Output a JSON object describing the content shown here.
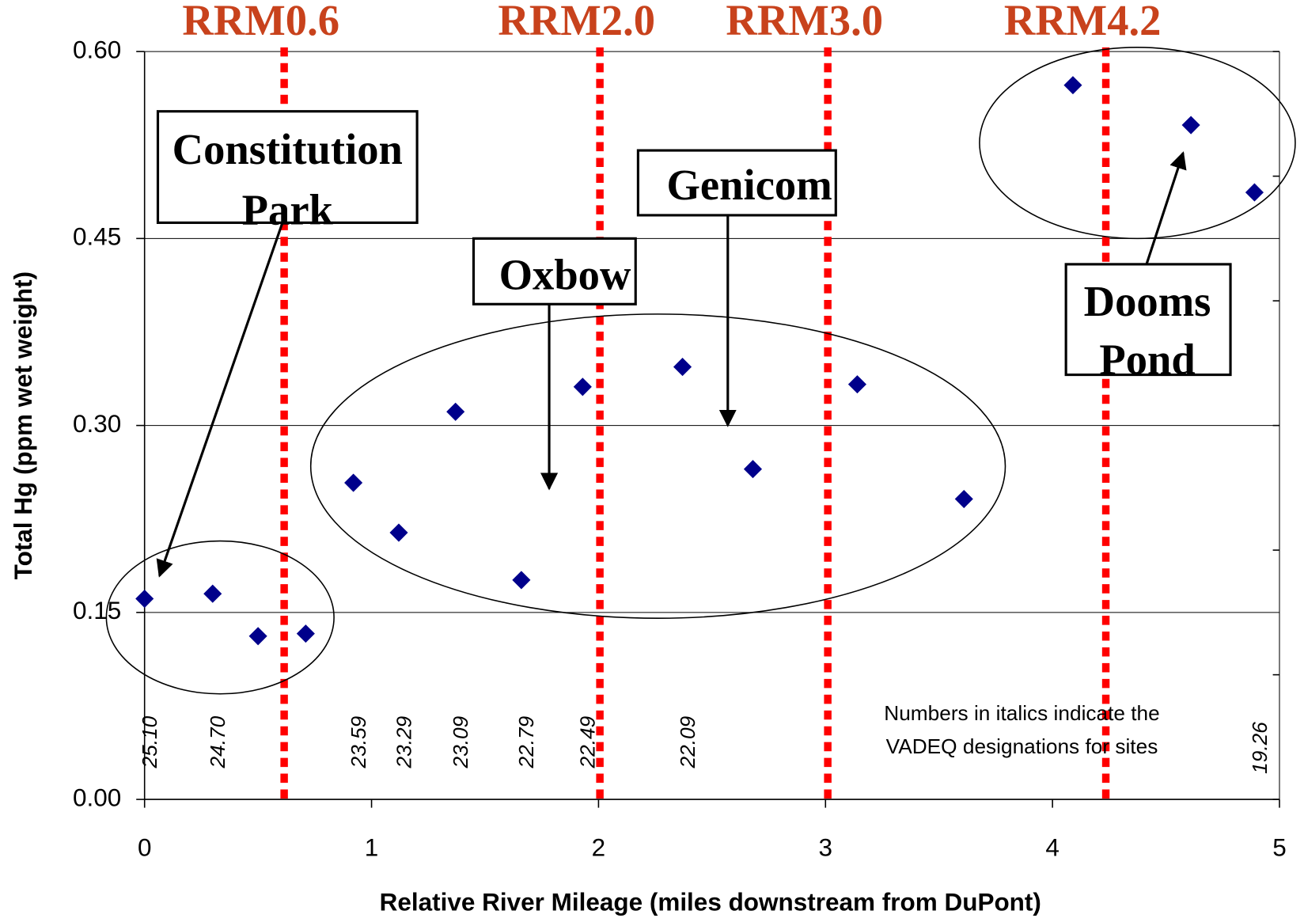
{
  "chart_data": {
    "type": "scatter",
    "x_label": "Relative River Mileage (miles downstream from DuPont)",
    "y_label": "Total Hg (ppm wet weight)",
    "x": [
      0,
      0.3,
      0.5,
      0.71,
      0.92,
      1.12,
      1.37,
      1.66,
      1.93,
      2.37,
      2.68,
      3.14,
      3.61,
      4.09,
      4.61,
      4.89
    ],
    "values": [
      0.161,
      0.165,
      0.131,
      0.133,
      0.254,
      0.214,
      0.311,
      0.176,
      0.331,
      0.347,
      0.265,
      0.333,
      0.241,
      0.573,
      0.541,
      0.487
    ],
    "color": "#00008b",
    "xlim": [
      0,
      5
    ],
    "xticks": [
      0,
      1,
      2,
      3,
      4,
      5
    ],
    "ylim": [
      0,
      0.6
    ],
    "yticks": [
      {
        "value": 0,
        "label": "0.00"
      },
      {
        "value": 0.15,
        "label": "0.15"
      },
      {
        "value": 0.3,
        "label": "0.30"
      },
      {
        "value": 0.45,
        "label": "0.45"
      },
      {
        "value": 0.6,
        "label": "0.60"
      }
    ],
    "y2lim": [
      0,
      0.6
    ],
    "y2ticks": [
      0,
      0.1,
      0.2,
      0.3,
      0.4,
      0.5,
      0.6
    ],
    "grid": true,
    "reference_lines": [
      {
        "label": "RRM0.6",
        "x": 0.615,
        "color": "#ff0000"
      },
      {
        "label": "RRM2.0",
        "x": 2.006,
        "color": "#ff0000"
      },
      {
        "label": "RRM3.0",
        "x": 3.01,
        "color": "#ff0000"
      },
      {
        "label": "RRM4.2",
        "x": 4.235,
        "color": "#ff0000"
      }
    ],
    "site_labels": [
      {
        "text": "25.10",
        "x": 0
      },
      {
        "text": "24.70",
        "x": 0.3
      },
      {
        "text": "23.59",
        "x": 0.92
      },
      {
        "text": "23.29",
        "x": 1.12
      },
      {
        "text": "23.09",
        "x": 1.37
      },
      {
        "text": "22.79",
        "x": 1.66
      },
      {
        "text": "22.49",
        "x": 1.93
      },
      {
        "text": "22.09",
        "x": 2.37
      },
      {
        "text": "19.26",
        "x": 4.89
      }
    ],
    "annotations": [
      {
        "lines": [
          "Constitution",
          "Park"
        ]
      },
      {
        "lines": [
          "Oxbow"
        ]
      },
      {
        "lines": [
          "Genicom"
        ]
      },
      {
        "lines": [
          "Dooms",
          "Pond"
        ]
      }
    ],
    "note": [
      "Numbers in italics indicate the",
      "VADEQ designations for sites"
    ]
  }
}
